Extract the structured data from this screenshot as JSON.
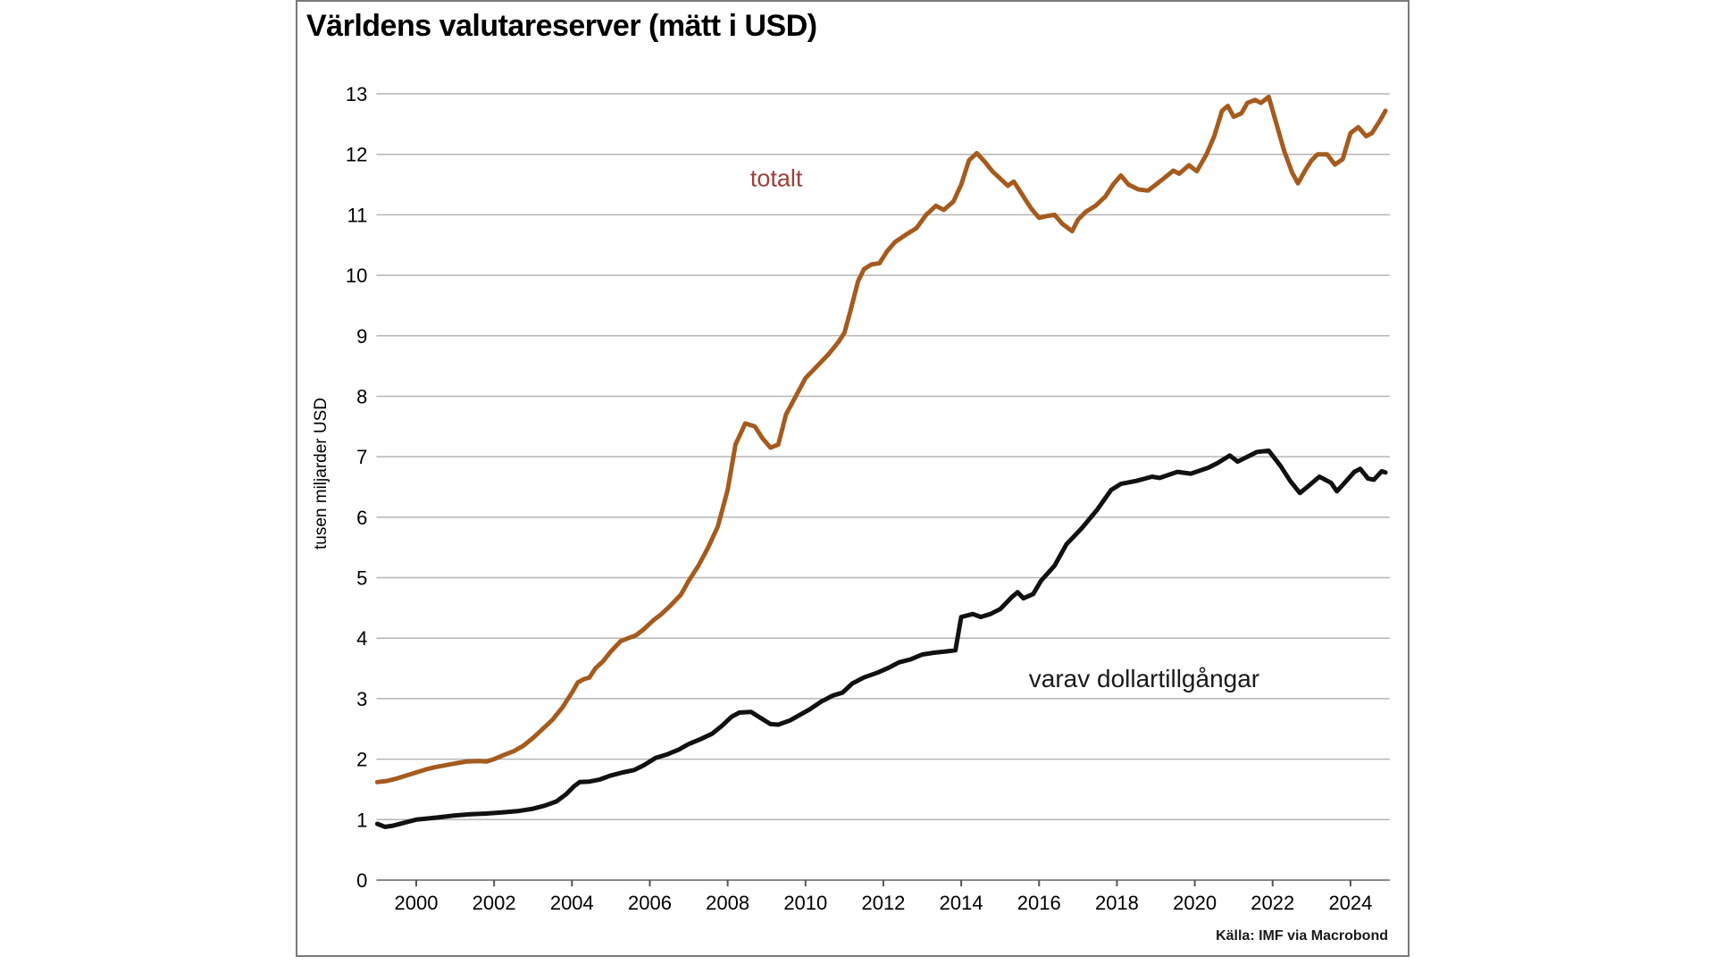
{
  "chart_data": {
    "type": "line",
    "title": "Världens valutareserver (mätt i USD)",
    "ylabel": "tusen miljarder USD",
    "xlabel": "",
    "source": "Källa: IMF via Macrobond",
    "xlim": [
      1999,
      2025.1
    ],
    "ylim": [
      0,
      13
    ],
    "grid": "horizontal",
    "legend_position": "inline-annotations",
    "x_ticks": [
      2000,
      2002,
      2004,
      2006,
      2008,
      2010,
      2012,
      2014,
      2016,
      2018,
      2020,
      2022,
      2024
    ],
    "y_ticks": [
      0,
      1,
      2,
      3,
      4,
      5,
      6,
      7,
      8,
      9,
      10,
      11,
      12,
      13
    ],
    "colors": {
      "grid": "#b5b5b5",
      "axis": "#8a8a8a",
      "tick": "#555555",
      "frame_border": "#7a7a7a",
      "text": "#000000",
      "totalt_line": "#a55b1e",
      "dollar_line": "#111111"
    },
    "annotations": [
      {
        "text": "totalt",
        "x": 2009.25,
        "y": 11.6,
        "color": "#9c3f3c",
        "size": 27
      },
      {
        "text": "varav dollartillgångar",
        "x": 2018.7,
        "y": 3.33,
        "color": "#1a1a1a",
        "size": 28
      }
    ],
    "series": [
      {
        "name": "totalt",
        "color": "#a55b1e",
        "width": 5,
        "points": [
          [
            1999.0,
            1.62
          ],
          [
            1999.25,
            1.64
          ],
          [
            1999.5,
            1.68
          ],
          [
            1999.75,
            1.73
          ],
          [
            2000.0,
            1.78
          ],
          [
            2000.25,
            1.83
          ],
          [
            2000.5,
            1.87
          ],
          [
            2000.75,
            1.9
          ],
          [
            2001.0,
            1.93
          ],
          [
            2001.3,
            1.96
          ],
          [
            2001.6,
            1.97
          ],
          [
            2001.8,
            1.96
          ],
          [
            2002.0,
            2.0
          ],
          [
            2002.25,
            2.07
          ],
          [
            2002.5,
            2.13
          ],
          [
            2002.75,
            2.22
          ],
          [
            2003.0,
            2.35
          ],
          [
            2003.25,
            2.5
          ],
          [
            2003.5,
            2.65
          ],
          [
            2003.75,
            2.85
          ],
          [
            2004.0,
            3.1
          ],
          [
            2004.15,
            3.27
          ],
          [
            2004.3,
            3.32
          ],
          [
            2004.45,
            3.35
          ],
          [
            2004.6,
            3.5
          ],
          [
            2004.8,
            3.62
          ],
          [
            2005.0,
            3.78
          ],
          [
            2005.25,
            3.95
          ],
          [
            2005.45,
            4.0
          ],
          [
            2005.65,
            4.05
          ],
          [
            2005.85,
            4.15
          ],
          [
            2006.1,
            4.3
          ],
          [
            2006.3,
            4.4
          ],
          [
            2006.55,
            4.55
          ],
          [
            2006.8,
            4.72
          ],
          [
            2007.0,
            4.95
          ],
          [
            2007.25,
            5.2
          ],
          [
            2007.5,
            5.5
          ],
          [
            2007.75,
            5.85
          ],
          [
            2008.0,
            6.45
          ],
          [
            2008.2,
            7.2
          ],
          [
            2008.45,
            7.55
          ],
          [
            2008.7,
            7.5
          ],
          [
            2008.9,
            7.3
          ],
          [
            2009.1,
            7.15
          ],
          [
            2009.3,
            7.2
          ],
          [
            2009.5,
            7.7
          ],
          [
            2009.75,
            8.0
          ],
          [
            2010.0,
            8.3
          ],
          [
            2010.3,
            8.5
          ],
          [
            2010.6,
            8.7
          ],
          [
            2010.85,
            8.9
          ],
          [
            2011.0,
            9.05
          ],
          [
            2011.15,
            9.4
          ],
          [
            2011.35,
            9.9
          ],
          [
            2011.5,
            10.1
          ],
          [
            2011.7,
            10.18
          ],
          [
            2011.9,
            10.2
          ],
          [
            2012.1,
            10.4
          ],
          [
            2012.3,
            10.55
          ],
          [
            2012.6,
            10.68
          ],
          [
            2012.85,
            10.78
          ],
          [
            2013.1,
            11.0
          ],
          [
            2013.35,
            11.15
          ],
          [
            2013.55,
            11.08
          ],
          [
            2013.8,
            11.22
          ],
          [
            2014.0,
            11.5
          ],
          [
            2014.2,
            11.9
          ],
          [
            2014.4,
            12.02
          ],
          [
            2014.6,
            11.88
          ],
          [
            2014.8,
            11.72
          ],
          [
            2015.0,
            11.6
          ],
          [
            2015.2,
            11.48
          ],
          [
            2015.35,
            11.55
          ],
          [
            2015.55,
            11.35
          ],
          [
            2015.8,
            11.1
          ],
          [
            2016.0,
            10.95
          ],
          [
            2016.2,
            10.98
          ],
          [
            2016.4,
            11.0
          ],
          [
            2016.6,
            10.85
          ],
          [
            2016.85,
            10.73
          ],
          [
            2017.0,
            10.92
          ],
          [
            2017.2,
            11.05
          ],
          [
            2017.45,
            11.15
          ],
          [
            2017.7,
            11.3
          ],
          [
            2017.9,
            11.5
          ],
          [
            2018.1,
            11.65
          ],
          [
            2018.3,
            11.5
          ],
          [
            2018.55,
            11.42
          ],
          [
            2018.8,
            11.4
          ],
          [
            2019.0,
            11.5
          ],
          [
            2019.2,
            11.6
          ],
          [
            2019.45,
            11.73
          ],
          [
            2019.6,
            11.68
          ],
          [
            2019.85,
            11.82
          ],
          [
            2020.05,
            11.72
          ],
          [
            2020.3,
            12.0
          ],
          [
            2020.5,
            12.3
          ],
          [
            2020.7,
            12.72
          ],
          [
            2020.85,
            12.8
          ],
          [
            2021.0,
            12.62
          ],
          [
            2021.2,
            12.68
          ],
          [
            2021.35,
            12.85
          ],
          [
            2021.55,
            12.9
          ],
          [
            2021.7,
            12.85
          ],
          [
            2021.9,
            12.95
          ],
          [
            2022.1,
            12.5
          ],
          [
            2022.3,
            12.05
          ],
          [
            2022.5,
            11.7
          ],
          [
            2022.65,
            11.52
          ],
          [
            2022.85,
            11.75
          ],
          [
            2023.0,
            11.9
          ],
          [
            2023.15,
            12.0
          ],
          [
            2023.4,
            12.0
          ],
          [
            2023.6,
            11.83
          ],
          [
            2023.8,
            11.92
          ],
          [
            2024.0,
            12.35
          ],
          [
            2024.2,
            12.45
          ],
          [
            2024.4,
            12.3
          ],
          [
            2024.55,
            12.35
          ],
          [
            2024.75,
            12.55
          ],
          [
            2024.9,
            12.72
          ]
        ]
      },
      {
        "name": "varav dollartillgångar",
        "color": "#111111",
        "width": 5,
        "points": [
          [
            1999.0,
            0.93
          ],
          [
            1999.2,
            0.88
          ],
          [
            1999.4,
            0.9
          ],
          [
            1999.7,
            0.95
          ],
          [
            2000.0,
            1.0
          ],
          [
            2000.3,
            1.02
          ],
          [
            2000.6,
            1.04
          ],
          [
            2001.0,
            1.07
          ],
          [
            2001.4,
            1.09
          ],
          [
            2001.8,
            1.1
          ],
          [
            2002.2,
            1.12
          ],
          [
            2002.6,
            1.14
          ],
          [
            2003.0,
            1.18
          ],
          [
            2003.3,
            1.23
          ],
          [
            2003.6,
            1.3
          ],
          [
            2003.85,
            1.42
          ],
          [
            2004.05,
            1.55
          ],
          [
            2004.2,
            1.62
          ],
          [
            2004.45,
            1.63
          ],
          [
            2004.7,
            1.66
          ],
          [
            2005.0,
            1.73
          ],
          [
            2005.3,
            1.78
          ],
          [
            2005.6,
            1.82
          ],
          [
            2005.85,
            1.9
          ],
          [
            2006.15,
            2.02
          ],
          [
            2006.45,
            2.08
          ],
          [
            2006.75,
            2.16
          ],
          [
            2007.0,
            2.25
          ],
          [
            2007.3,
            2.33
          ],
          [
            2007.6,
            2.42
          ],
          [
            2007.85,
            2.55
          ],
          [
            2008.1,
            2.7
          ],
          [
            2008.3,
            2.77
          ],
          [
            2008.6,
            2.78
          ],
          [
            2008.85,
            2.68
          ],
          [
            2009.1,
            2.58
          ],
          [
            2009.3,
            2.57
          ],
          [
            2009.6,
            2.64
          ],
          [
            2009.85,
            2.73
          ],
          [
            2010.1,
            2.82
          ],
          [
            2010.4,
            2.95
          ],
          [
            2010.7,
            3.05
          ],
          [
            2010.95,
            3.1
          ],
          [
            2011.2,
            3.25
          ],
          [
            2011.5,
            3.35
          ],
          [
            2011.85,
            3.43
          ],
          [
            2012.1,
            3.5
          ],
          [
            2012.4,
            3.6
          ],
          [
            2012.7,
            3.65
          ],
          [
            2013.0,
            3.73
          ],
          [
            2013.3,
            3.76
          ],
          [
            2013.6,
            3.78
          ],
          [
            2013.85,
            3.8
          ],
          [
            2014.0,
            4.35
          ],
          [
            2014.3,
            4.4
          ],
          [
            2014.5,
            4.35
          ],
          [
            2014.75,
            4.4
          ],
          [
            2015.0,
            4.48
          ],
          [
            2015.3,
            4.68
          ],
          [
            2015.45,
            4.76
          ],
          [
            2015.6,
            4.66
          ],
          [
            2015.85,
            4.73
          ],
          [
            2016.05,
            4.95
          ],
          [
            2016.4,
            5.2
          ],
          [
            2016.7,
            5.55
          ],
          [
            2017.1,
            5.82
          ],
          [
            2017.5,
            6.13
          ],
          [
            2017.85,
            6.45
          ],
          [
            2018.1,
            6.55
          ],
          [
            2018.5,
            6.6
          ],
          [
            2018.9,
            6.67
          ],
          [
            2019.1,
            6.65
          ],
          [
            2019.55,
            6.75
          ],
          [
            2019.9,
            6.72
          ],
          [
            2020.35,
            6.82
          ],
          [
            2020.6,
            6.9
          ],
          [
            2020.9,
            7.02
          ],
          [
            2021.1,
            6.92
          ],
          [
            2021.35,
            7.0
          ],
          [
            2021.6,
            7.08
          ],
          [
            2021.9,
            7.1
          ],
          [
            2022.2,
            6.85
          ],
          [
            2022.45,
            6.6
          ],
          [
            2022.7,
            6.4
          ],
          [
            2023.0,
            6.56
          ],
          [
            2023.2,
            6.67
          ],
          [
            2023.5,
            6.57
          ],
          [
            2023.65,
            6.43
          ],
          [
            2023.85,
            6.57
          ],
          [
            2024.1,
            6.75
          ],
          [
            2024.25,
            6.8
          ],
          [
            2024.45,
            6.64
          ],
          [
            2024.6,
            6.62
          ],
          [
            2024.8,
            6.76
          ],
          [
            2024.9,
            6.74
          ]
        ]
      }
    ]
  }
}
